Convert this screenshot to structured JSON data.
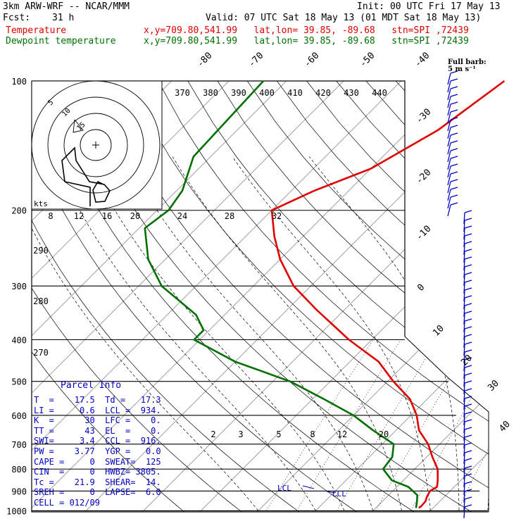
{
  "header": {
    "model": "3km ARW-WRF -- NCAR/MMM",
    "init": "Init: 00 UTC Fri 17 May 13",
    "fcst_label": "Fcst:",
    "fcst_value": "31 h",
    "valid": "Valid: 07 UTC Sat 18 May 13 (01 MDT Sat 18 May 13)",
    "temp_label": "Temperature",
    "temp_info": "x,y=709.80,541.99   lat,lon= 39.85, -89.68   stn=SPI ,72439",
    "dew_label": "Dewpoint temperature",
    "dew_info": "x,y=709.80,541.99   lat,lon= 39.85, -89.68   stn=SPI ,72439"
  },
  "colors": {
    "temperature": "#e00000",
    "dewpoint": "#007000",
    "parcel": "#0000c0",
    "wind": "#0000c0",
    "axes": "#000000",
    "guides": "#000000"
  },
  "parcel_info": {
    "title": "Parcel Info",
    "rows": [
      "T  =    17.5  Td =   17.3",
      "LI =     0.6  LCL =  934.",
      "K  =      30  LFC =    0.",
      "TT =      43  EL  =    0.",
      "SWI=     3.4  CCL =  916.",
      "PW =    3.77  YGP =   0.0",
      "CAPE =     0  SWEAT=  125",
      "CIN  =     0  HWBZ= 3805.",
      "Tc =    21.9  SHEAR=  14.",
      "SREH =     0  LAPSE=  6.0",
      "CELL = 012/09"
    ]
  },
  "chart_data": {
    "type": "line",
    "skewt": true,
    "y_axis_label": "pressure",
    "pressure_levels": [
      100,
      200,
      300,
      400,
      500,
      600,
      700,
      800,
      900,
      1000
    ],
    "temperature_ticks": [
      -80,
      -70,
      -60,
      -50,
      -40,
      -30,
      -20,
      -10,
      0,
      10,
      20,
      30,
      40
    ],
    "theta_labels": [
      370,
      380,
      390,
      400,
      410,
      420,
      430,
      440
    ],
    "theta_left_labels": [
      290,
      280,
      270
    ],
    "mixing_ratio_labels_upper": [
      8,
      12,
      16,
      20,
      24,
      28,
      32
    ],
    "mixing_ratio_labels_lower": [
      2,
      3,
      5,
      8,
      12,
      20
    ],
    "series": [
      {
        "name": "Temperature",
        "color": "#e00000",
        "points": [
          [
            100,
            -42
          ],
          [
            130,
            -45
          ],
          [
            160,
            -50
          ],
          [
            180,
            -56
          ],
          [
            200,
            -60
          ],
          [
            230,
            -55
          ],
          [
            260,
            -50
          ],
          [
            300,
            -43
          ],
          [
            340,
            -35
          ],
          [
            400,
            -24
          ],
          [
            450,
            -15
          ],
          [
            500,
            -9
          ],
          [
            550,
            -3
          ],
          [
            600,
            1
          ],
          [
            650,
            4
          ],
          [
            700,
            8
          ],
          [
            750,
            11
          ],
          [
            800,
            14
          ],
          [
            850,
            16
          ],
          [
            880,
            17
          ],
          [
            900,
            16.5
          ],
          [
            930,
            17
          ],
          [
            950,
            17.5
          ],
          [
            975,
            17.6
          ],
          [
            985,
            17.5
          ]
        ]
      },
      {
        "name": "Dewpoint temperature",
        "color": "#007000",
        "points": [
          [
            100,
            -84
          ],
          [
            150,
            -83
          ],
          [
            180,
            -79
          ],
          [
            200,
            -78
          ],
          [
            220,
            -79
          ],
          [
            260,
            -73
          ],
          [
            300,
            -66
          ],
          [
            350,
            -55
          ],
          [
            380,
            -51
          ],
          [
            400,
            -51
          ],
          [
            450,
            -40
          ],
          [
            500,
            -27
          ],
          [
            550,
            -18
          ],
          [
            600,
            -10
          ],
          [
            650,
            -4
          ],
          [
            700,
            2
          ],
          [
            750,
            4
          ],
          [
            800,
            4.5
          ],
          [
            850,
            8
          ],
          [
            880,
            12
          ],
          [
            920,
            15
          ],
          [
            950,
            16
          ],
          [
            985,
            17
          ]
        ]
      }
    ],
    "lcl_labels": [
      "LCL",
      "LCL"
    ],
    "hodograph": {
      "ring_labels": [
        5,
        10,
        15
      ],
      "unit_label": "kts"
    },
    "wind_key_label": "Full barb: 5 m s⁻¹"
  }
}
